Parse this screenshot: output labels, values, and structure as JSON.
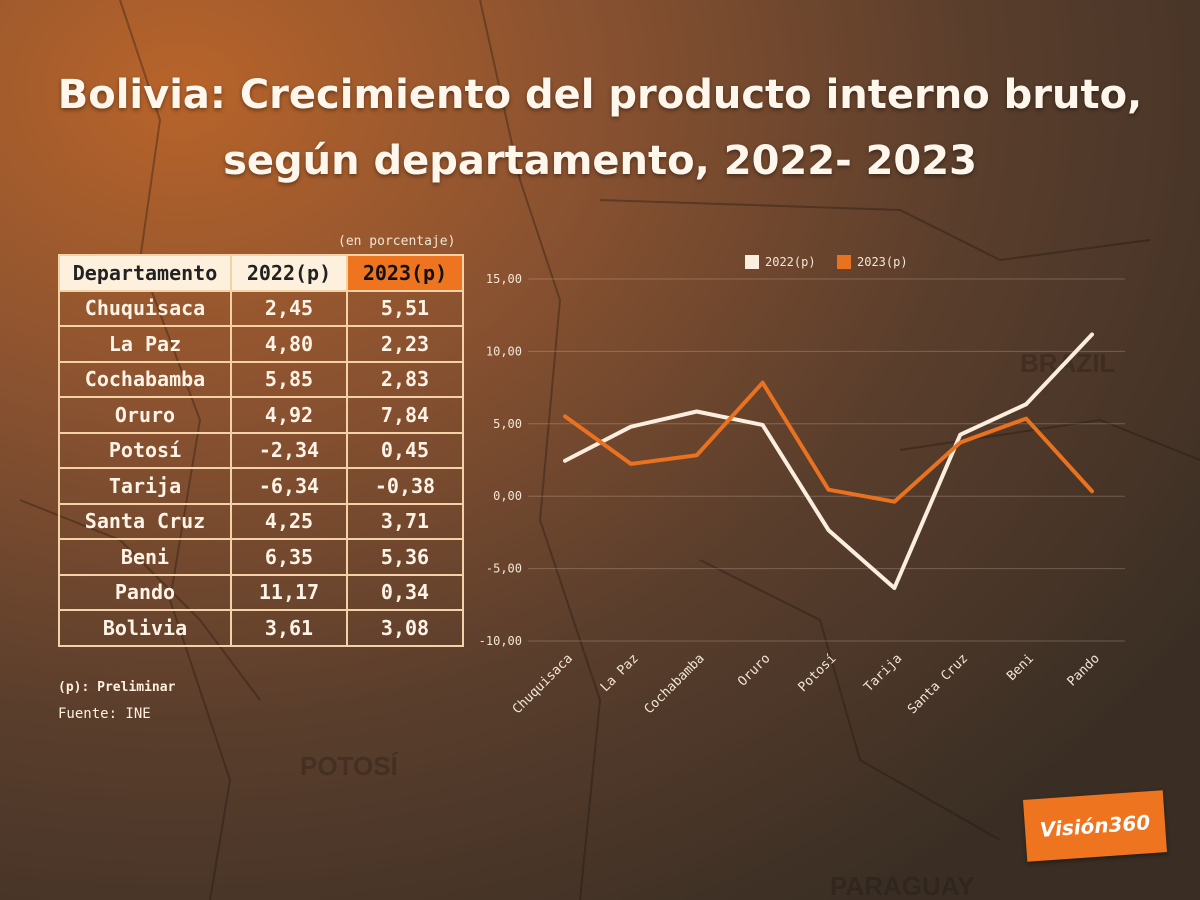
{
  "title_line1": "Bolivia: Crecimiento del producto interno bruto,",
  "title_line2": "según departamento, 2022- 2023",
  "unit_note": "(en porcentaje)",
  "table": {
    "headers": [
      "Departamento",
      "2022(p)",
      "2023(p)"
    ],
    "rows": [
      [
        "Chuquisaca",
        "2,45",
        "5,51"
      ],
      [
        "La Paz",
        "4,80",
        "2,23"
      ],
      [
        "Cochabamba",
        "5,85",
        "2,83"
      ],
      [
        "Oruro",
        "4,92",
        "7,84"
      ],
      [
        "Potosí",
        "-2,34",
        "0,45"
      ],
      [
        "Tarija",
        "-6,34",
        "-0,38"
      ],
      [
        "Santa Cruz",
        "4,25",
        "3,71"
      ],
      [
        "Beni",
        "6,35",
        "5,36"
      ],
      [
        "Pando",
        "11,17",
        "0,34"
      ],
      [
        "Bolivia",
        "3,61",
        "3,08"
      ]
    ]
  },
  "footnote": "(p): Preliminar",
  "source": "Fuente: INE",
  "logo_text": "Visión360",
  "colors": {
    "series_2022": "#fbeede",
    "series_2023": "#e8721f",
    "header_highlight": "#ee7420"
  },
  "chart_data": {
    "type": "line",
    "categories": [
      "Chuquisaca",
      "La Paz",
      "Cochabamba",
      "Oruro",
      "Potosí",
      "Tarija",
      "Santa Cruz",
      "Beni",
      "Pando"
    ],
    "series": [
      {
        "name": "2022(p)",
        "values": [
          2.45,
          4.8,
          5.85,
          4.92,
          -2.34,
          -6.34,
          4.25,
          6.35,
          11.17
        ]
      },
      {
        "name": "2023(p)",
        "values": [
          5.51,
          2.23,
          2.83,
          7.84,
          0.45,
          -0.38,
          3.71,
          5.36,
          0.34
        ]
      }
    ],
    "y_ticks": [
      "15,00",
      "10,00",
      "5,00",
      "0,00",
      "-5,00",
      "-10,00"
    ],
    "ylim": [
      -10,
      15
    ],
    "grid": true,
    "legend": "top"
  }
}
